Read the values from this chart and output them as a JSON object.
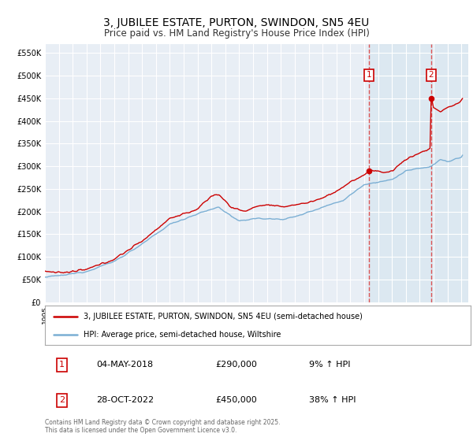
{
  "title": "3, JUBILEE ESTATE, PURTON, SWINDON, SN5 4EU",
  "subtitle": "Price paid vs. HM Land Registry's House Price Index (HPI)",
  "background_color": "#ffffff",
  "plot_bg_color": "#e8eef5",
  "grid_color": "#ffffff",
  "red_line_color": "#cc0000",
  "blue_line_color": "#7bafd4",
  "highlight_bg_color": "#d8e6f0",
  "dashed_line_color": "#dd4444",
  "ylim": [
    0,
    570000
  ],
  "xstart": 1995,
  "xend": 2025,
  "sale1_year": 2018.35,
  "sale1_price": 290000,
  "sale2_year": 2022.83,
  "sale2_price": 450000,
  "legend_property": "3, JUBILEE ESTATE, PURTON, SWINDON, SN5 4EU (semi-detached house)",
  "legend_hpi": "HPI: Average price, semi-detached house, Wiltshire",
  "annotation1_label": "1",
  "annotation1_date": "04-MAY-2018",
  "annotation1_price": "£290,000",
  "annotation1_hpi": "9% ↑ HPI",
  "annotation2_label": "2",
  "annotation2_date": "28-OCT-2022",
  "annotation2_price": "£450,000",
  "annotation2_hpi": "38% ↑ HPI",
  "footer": "Contains HM Land Registry data © Crown copyright and database right 2025.\nThis data is licensed under the Open Government Licence v3.0."
}
